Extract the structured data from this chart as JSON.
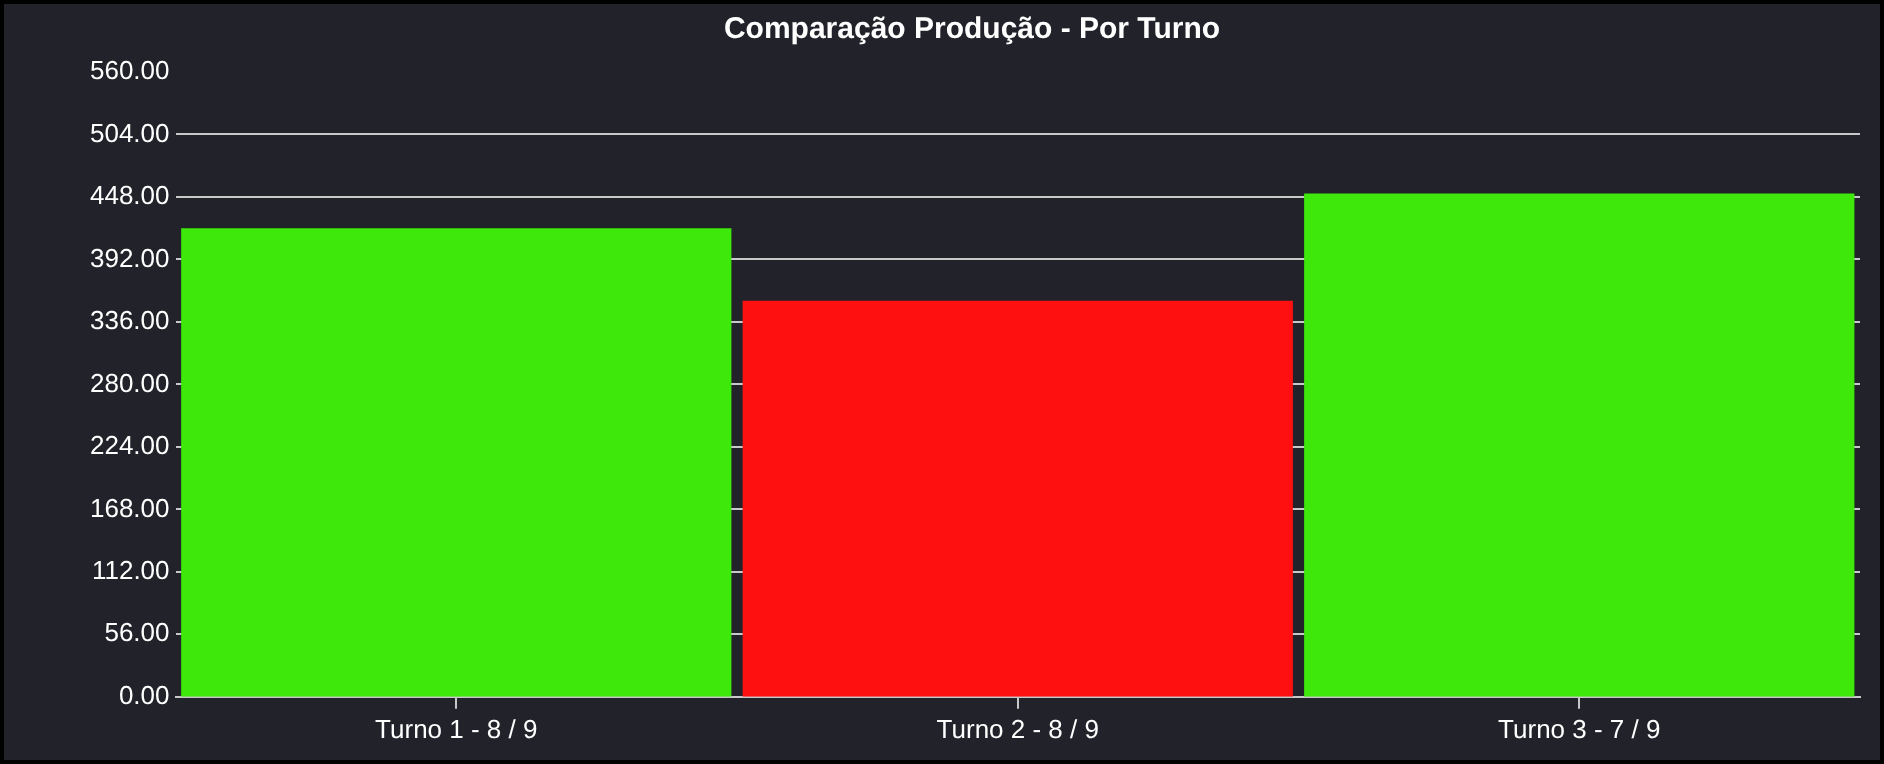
{
  "chart_data": {
    "type": "bar",
    "title": "Comparação Produção - Por Turno",
    "categories": [
      "Turno 1 - 8 / 9",
      "Turno 2 - 8 / 9",
      "Turno 3 - 7 / 9"
    ],
    "values": [
      420,
      355,
      451
    ],
    "colors": [
      "#3ee80a",
      "#ff1010",
      "#3ee80a"
    ],
    "ylim": [
      0,
      560
    ],
    "yticks": [
      {
        "value": 0,
        "label": "0.00"
      },
      {
        "value": 56,
        "label": "56.00"
      },
      {
        "value": 112,
        "label": "112.00"
      },
      {
        "value": 168,
        "label": "168.00"
      },
      {
        "value": 224,
        "label": "224.00"
      },
      {
        "value": 280,
        "label": "280.00"
      },
      {
        "value": 336,
        "label": "336.00"
      },
      {
        "value": 392,
        "label": "392.00"
      },
      {
        "value": 448,
        "label": "448.00"
      },
      {
        "value": 504,
        "label": "504.00"
      },
      {
        "value": 560,
        "label": "560.00"
      }
    ],
    "grid": "y",
    "legend": false
  }
}
